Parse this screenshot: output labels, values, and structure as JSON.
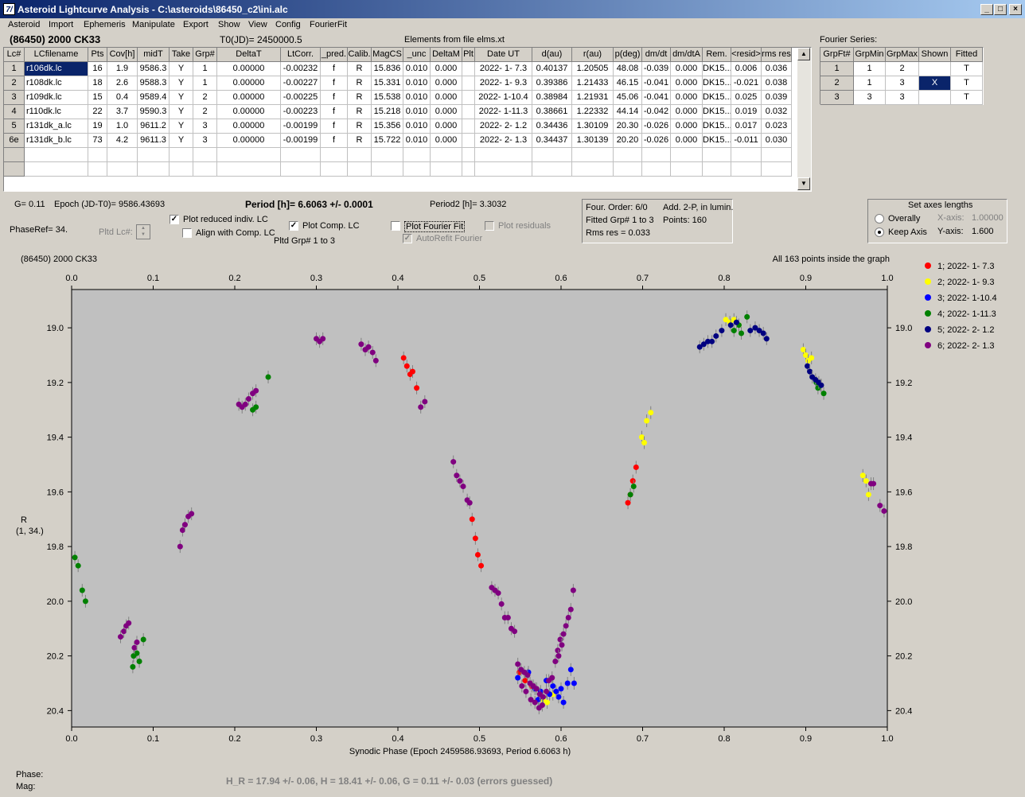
{
  "window": {
    "title": "Asteroid Lightcurve Analysis - C:\\asteroids\\86450_c2\\ini.alc",
    "icon": "7/"
  },
  "menu": [
    "Asteroid",
    "Import",
    "Ephemeris",
    "Manipulate",
    "Export",
    "Show",
    "View",
    "Config",
    "FourierFit"
  ],
  "header": {
    "object": "(86450) 2000 CK33",
    "t0": "T0(JD)= 2450000.5",
    "elements": "Elements from file elms.xt",
    "fourier_title": "Fourier Series:"
  },
  "lc_table": {
    "columns": [
      "Lc#",
      "LCfilename",
      "Pts",
      "Cov[h]",
      "midT",
      "Take",
      "Grp#",
      "DeltaT",
      "LtCorr.",
      "_pred.",
      "Calib.",
      "MagCS",
      "_unc",
      "DeltaM",
      "Plt",
      "Date UT",
      "d(au)",
      "r(au)",
      "p(deg)",
      "dm/dt",
      "dm/dtA",
      "Rem.",
      "<resid>",
      "rms res"
    ],
    "rows": [
      [
        "1",
        "r106dk.lc",
        "16",
        "1.9",
        "9586.3",
        "Y",
        "1",
        "0.00000",
        "-0.00232",
        "f",
        "R",
        "15.836",
        "0.010",
        "0.000",
        "",
        "2022- 1- 7.3",
        "0.40137",
        "1.20505",
        "48.08",
        "-0.039",
        "0.000",
        "DK15...",
        "0.006",
        "0.036"
      ],
      [
        "2",
        "r108dk.lc",
        "18",
        "2.6",
        "9588.3",
        "Y",
        "1",
        "0.00000",
        "-0.00227",
        "f",
        "R",
        "15.331",
        "0.010",
        "0.000",
        "",
        "2022- 1- 9.3",
        "0.39386",
        "1.21433",
        "46.15",
        "-0.041",
        "0.000",
        "DK15...",
        "-0.021",
        "0.038"
      ],
      [
        "3",
        "r109dk.lc",
        "15",
        "0.4",
        "9589.4",
        "Y",
        "2",
        "0.00000",
        "-0.00225",
        "f",
        "R",
        "15.538",
        "0.010",
        "0.000",
        "",
        "2022- 1-10.4",
        "0.38984",
        "1.21931",
        "45.06",
        "-0.041",
        "0.000",
        "DK15...",
        "0.025",
        "0.039"
      ],
      [
        "4",
        "r110dk.lc",
        "22",
        "3.7",
        "9590.3",
        "Y",
        "2",
        "0.00000",
        "-0.00223",
        "f",
        "R",
        "15.218",
        "0.010",
        "0.000",
        "",
        "2022- 1-11.3",
        "0.38661",
        "1.22332",
        "44.14",
        "-0.042",
        "0.000",
        "DK15...",
        "0.019",
        "0.032"
      ],
      [
        "5",
        "r131dk_a.lc",
        "19",
        "1.0",
        "9611.2",
        "Y",
        "3",
        "0.00000",
        "-0.00199",
        "f",
        "R",
        "15.356",
        "0.010",
        "0.000",
        "",
        "2022- 2- 1.2",
        "0.34436",
        "1.30109",
        "20.30",
        "-0.026",
        "0.000",
        "DK15...",
        "0.017",
        "0.023"
      ],
      [
        "6e",
        "r131dk_b.lc",
        "73",
        "4.2",
        "9611.3",
        "Y",
        "3",
        "0.00000",
        "-0.00199",
        "f",
        "R",
        "15.722",
        "0.010",
        "0.000",
        "",
        "2022- 2- 1.3",
        "0.34437",
        "1.30139",
        "20.20",
        "-0.026",
        "0.000",
        "DK15...",
        "-0.011",
        "0.030"
      ]
    ]
  },
  "fourier_table": {
    "columns": [
      "GrpFt#",
      "GrpMin",
      "GrpMax",
      "Shown",
      "Fitted"
    ],
    "rows": [
      [
        "1",
        "1",
        "2",
        "",
        "T"
      ],
      [
        "2",
        "1",
        "3",
        "X",
        "T"
      ],
      [
        "3",
        "3",
        "3",
        "",
        "T"
      ]
    ]
  },
  "params": {
    "g": "G= 0.11",
    "epoch": "Epoch (JD-T0)= 9586.43693",
    "period": "Period [h]= 6.6063 +/- 0.0001",
    "period2": "Period2 [h]= 3.3032",
    "phaseref": "PhaseRef= 34.",
    "pltd_lc": "Pltd Lc#:",
    "pltd_grp": "Pltd Grp#  1   to   3"
  },
  "options": {
    "plot_reduced": "Plot reduced indiv. LC",
    "align_comp": "Align with Comp. LC",
    "plot_comp": "Plot Comp. LC",
    "plot_fourier": "Plot Fourier Fit",
    "autorefit": "AutoRefit Fourier",
    "plot_residuals": "Plot residuals"
  },
  "fourier_info": {
    "order": "Four. Order:  6/0",
    "add": "Add. 2-P, in lumin.",
    "fitted": "Fitted Grp# 1 to 3",
    "points": "Points: 160",
    "rms": "Rms res     = 0.033"
  },
  "axes_panel": {
    "title": "Set axes lengths",
    "overally": "Overally",
    "keep": "Keep Axis",
    "xaxis_label": "X-axis:",
    "xaxis_value": "1.00000",
    "yaxis_label": "Y-axis:",
    "yaxis_value": "1.600"
  },
  "footer": {
    "phase": "Phase:",
    "mag": "Mag:",
    "result": "H_R = 17.94 +/- 0.06, H = 18.41 +/- 0.06, G = 0.11 +/- 0.03 (errors guessed)"
  },
  "chart_data": {
    "type": "scatter",
    "title": "(86450) 2000 CK33",
    "note": "All 163 points inside the graph",
    "xlabel": "Synodic Phase (Epoch 2459586.93693, Period 6.6063 h)",
    "ylabel": "R",
    "ylabel2": "(1, 34.)",
    "xlim": [
      0,
      1
    ],
    "ylim": [
      20.46,
      18.86
    ],
    "xticks": [
      "0.0",
      "0.1",
      "0.2",
      "0.3",
      "0.4",
      "0.5",
      "0.6",
      "0.7",
      "0.8",
      "0.9",
      "1.0"
    ],
    "yticks": [
      "19.0",
      "19.2",
      "19.4",
      "19.6",
      "19.8",
      "20.0",
      "20.2",
      "20.4"
    ],
    "series": [
      {
        "name": "1; 2022- 1- 7.3",
        "color": "#ff0000",
        "points": [
          [
            0.407,
            19.11
          ],
          [
            0.411,
            19.14
          ],
          [
            0.415,
            19.17
          ],
          [
            0.418,
            19.16
          ],
          [
            0.423,
            19.22
          ],
          [
            0.491,
            19.7
          ],
          [
            0.495,
            19.77
          ],
          [
            0.498,
            19.83
          ],
          [
            0.502,
            19.87
          ],
          [
            0.682,
            19.64
          ],
          [
            0.685,
            19.61
          ],
          [
            0.688,
            19.56
          ],
          [
            0.692,
            19.51
          ],
          [
            0.549,
            20.26
          ],
          [
            0.556,
            20.29
          ],
          [
            0.564,
            20.31
          ]
        ]
      },
      {
        "name": "2; 2022- 1- 9.3",
        "color": "#ffff00",
        "points": [
          [
            0.699,
            19.4
          ],
          [
            0.702,
            19.42
          ],
          [
            0.705,
            19.34
          ],
          [
            0.71,
            19.31
          ],
          [
            0.802,
            18.97
          ],
          [
            0.807,
            18.98
          ],
          [
            0.812,
            18.97
          ],
          [
            0.818,
            18.99
          ],
          [
            0.897,
            19.08
          ],
          [
            0.9,
            19.1
          ],
          [
            0.903,
            19.12
          ],
          [
            0.907,
            19.11
          ],
          [
            0.97,
            19.54
          ],
          [
            0.974,
            19.56
          ],
          [
            0.977,
            19.61
          ],
          [
            0.578,
            20.36
          ],
          [
            0.583,
            20.37
          ],
          [
            0.59,
            20.34
          ]
        ]
      },
      {
        "name": "3; 2022- 1-10.4",
        "color": "#0000ff",
        "points": [
          [
            0.547,
            20.28
          ],
          [
            0.56,
            20.26
          ],
          [
            0.568,
            20.32
          ],
          [
            0.575,
            20.33
          ],
          [
            0.582,
            20.29
          ],
          [
            0.59,
            20.31
          ],
          [
            0.597,
            20.35
          ],
          [
            0.603,
            20.37
          ],
          [
            0.608,
            20.3
          ],
          [
            0.612,
            20.25
          ],
          [
            0.616,
            20.3
          ],
          [
            0.572,
            20.36
          ],
          [
            0.586,
            20.34
          ],
          [
            0.594,
            20.33
          ],
          [
            0.6,
            20.32
          ]
        ]
      },
      {
        "name": "4; 2022- 1-11.3",
        "color": "#008000",
        "points": [
          [
            0.004,
            19.84
          ],
          [
            0.008,
            19.87
          ],
          [
            0.013,
            19.96
          ],
          [
            0.017,
            20.0
          ],
          [
            0.075,
            20.24
          ],
          [
            0.08,
            20.19
          ],
          [
            0.083,
            20.22
          ],
          [
            0.088,
            20.14
          ],
          [
            0.222,
            19.3
          ],
          [
            0.226,
            19.29
          ],
          [
            0.241,
            19.18
          ],
          [
            0.685,
            19.61
          ],
          [
            0.689,
            19.58
          ],
          [
            0.812,
            19.01
          ],
          [
            0.818,
            18.99
          ],
          [
            0.821,
            19.02
          ],
          [
            0.828,
            18.96
          ],
          [
            0.913,
            19.2
          ],
          [
            0.918,
            19.21
          ],
          [
            0.922,
            19.24
          ],
          [
            0.076,
            20.2
          ],
          [
            0.915,
            19.22
          ]
        ]
      },
      {
        "name": "5; 2022- 2- 1.2",
        "color": "#000080",
        "points": [
          [
            0.77,
            19.07
          ],
          [
            0.775,
            19.06
          ],
          [
            0.78,
            19.05
          ],
          [
            0.785,
            19.05
          ],
          [
            0.79,
            19.03
          ],
          [
            0.797,
            19.01
          ],
          [
            0.832,
            19.01
          ],
          [
            0.838,
            19.0
          ],
          [
            0.843,
            19.01
          ],
          [
            0.848,
            19.02
          ],
          [
            0.852,
            19.04
          ],
          [
            0.902,
            19.14
          ],
          [
            0.905,
            19.16
          ],
          [
            0.908,
            19.18
          ],
          [
            0.912,
            19.19
          ],
          [
            0.916,
            19.2
          ],
          [
            0.919,
            19.21
          ],
          [
            0.808,
            18.99
          ],
          [
            0.815,
            18.98
          ]
        ]
      },
      {
        "name": "6; 2022- 2- 1.3",
        "color": "#800080",
        "points": [
          [
            0.06,
            20.13
          ],
          [
            0.064,
            20.11
          ],
          [
            0.067,
            20.09
          ],
          [
            0.07,
            20.08
          ],
          [
            0.077,
            20.17
          ],
          [
            0.08,
            20.15
          ],
          [
            0.133,
            19.8
          ],
          [
            0.136,
            19.74
          ],
          [
            0.139,
            19.72
          ],
          [
            0.143,
            19.69
          ],
          [
            0.147,
            19.68
          ],
          [
            0.205,
            19.28
          ],
          [
            0.209,
            19.29
          ],
          [
            0.213,
            19.28
          ],
          [
            0.217,
            19.26
          ],
          [
            0.222,
            19.24
          ],
          [
            0.226,
            19.23
          ],
          [
            0.3,
            19.04
          ],
          [
            0.304,
            19.05
          ],
          [
            0.308,
            19.04
          ],
          [
            0.355,
            19.06
          ],
          [
            0.36,
            19.08
          ],
          [
            0.364,
            19.07
          ],
          [
            0.369,
            19.09
          ],
          [
            0.373,
            19.12
          ],
          [
            0.428,
            19.29
          ],
          [
            0.433,
            19.27
          ],
          [
            0.468,
            19.49
          ],
          [
            0.472,
            19.54
          ],
          [
            0.476,
            19.56
          ],
          [
            0.48,
            19.58
          ],
          [
            0.485,
            19.63
          ],
          [
            0.488,
            19.64
          ],
          [
            0.515,
            19.95
          ],
          [
            0.519,
            19.96
          ],
          [
            0.523,
            19.97
          ],
          [
            0.527,
            20.01
          ],
          [
            0.531,
            20.06
          ],
          [
            0.535,
            20.06
          ],
          [
            0.539,
            20.1
          ],
          [
            0.543,
            20.11
          ],
          [
            0.547,
            20.23
          ],
          [
            0.551,
            20.25
          ],
          [
            0.555,
            20.26
          ],
          [
            0.559,
            20.27
          ],
          [
            0.562,
            20.3
          ],
          [
            0.566,
            20.31
          ],
          [
            0.57,
            20.32
          ],
          [
            0.574,
            20.34
          ],
          [
            0.578,
            20.35
          ],
          [
            0.582,
            20.33
          ],
          [
            0.585,
            20.29
          ],
          [
            0.589,
            20.28
          ],
          [
            0.593,
            20.22
          ],
          [
            0.596,
            20.18
          ],
          [
            0.599,
            20.14
          ],
          [
            0.603,
            20.12
          ],
          [
            0.606,
            20.09
          ],
          [
            0.609,
            20.06
          ],
          [
            0.612,
            20.03
          ],
          [
            0.615,
            19.96
          ],
          [
            0.557,
            20.33
          ],
          [
            0.563,
            20.36
          ],
          [
            0.568,
            20.37
          ],
          [
            0.573,
            20.39
          ],
          [
            0.577,
            20.38
          ],
          [
            0.552,
            20.31
          ],
          [
            0.98,
            19.57
          ],
          [
            0.983,
            19.57
          ],
          [
            0.991,
            19.65
          ],
          [
            0.996,
            19.67
          ],
          [
            0.597,
            20.2
          ],
          [
            0.601,
            20.16
          ]
        ]
      }
    ]
  }
}
